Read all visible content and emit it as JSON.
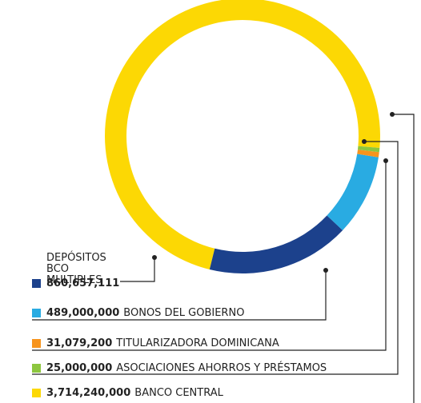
{
  "chart_data": {
    "type": "pie",
    "donut": true,
    "categories": [
      "DEPÓSITOS BCO MULTIPLES",
      "BONOS DEL GOBIERNO",
      "TITULARIZADORA DOMINICANA",
      "ASOCIACIONES AHORROS Y PRÉSTAMOS",
      "BANCO CENTRAL"
    ],
    "values": [
      860657111,
      489000000,
      31079200,
      25000000,
      3714240000
    ],
    "value_labels": [
      "860,657,111",
      "489,000,000",
      "31,079,200",
      "25,000,000",
      "3,714,240,000"
    ],
    "colors": [
      "#1c418c",
      "#29abe2",
      "#f7941d",
      "#8dc63f",
      "#fcd804"
    ]
  }
}
